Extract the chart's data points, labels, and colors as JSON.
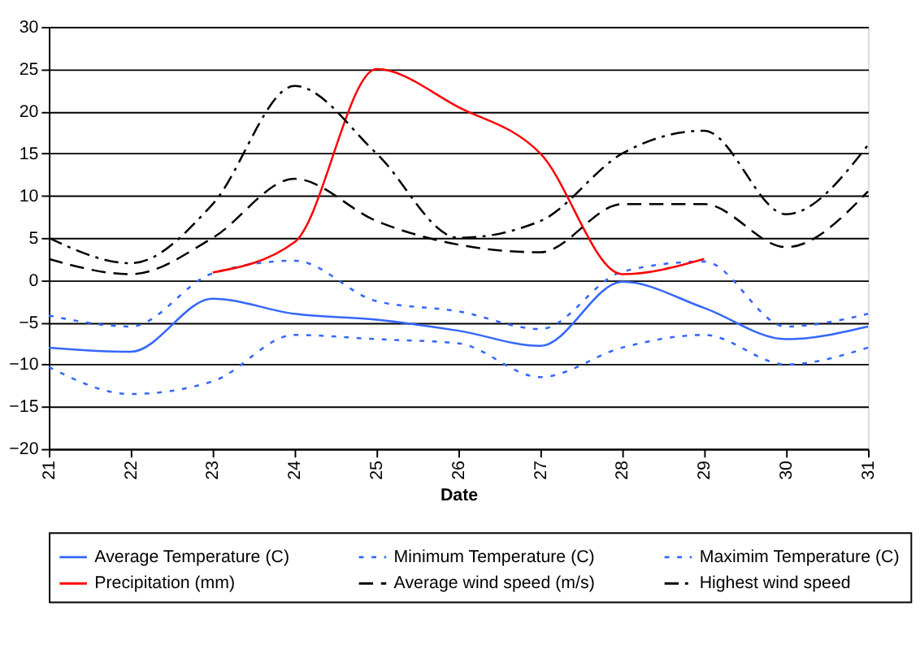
{
  "chart_data": {
    "type": "line",
    "xlabel": "Date",
    "x": [
      21,
      22,
      23,
      24,
      25,
      26,
      27,
      28,
      29,
      30,
      31
    ],
    "xlim": [
      21,
      31
    ],
    "xticks": [
      21,
      22,
      23,
      24,
      25,
      26,
      27,
      28,
      29,
      30,
      31
    ],
    "ylim": [
      -20,
      30
    ],
    "yticks": [
      -20,
      -15,
      -10,
      -5,
      0,
      5,
      10,
      15,
      20,
      25,
      30
    ],
    "grid": "y",
    "legend": "bottom",
    "series": [
      {
        "name": "Average Temperature (C)",
        "color": "#3366ff",
        "line_style": "solid",
        "values": [
          -8,
          -8.5,
          -2.2,
          -4,
          -4.7,
          -6,
          -7.8,
          -0.2,
          -3.3,
          -7,
          -5.5
        ]
      },
      {
        "name": "Minimum Temperature (C)",
        "color": "#3366ff",
        "line_style": "dotted",
        "values": [
          -10.3,
          -13.5,
          -12,
          -6.5,
          -7,
          -7.5,
          -11.5,
          -8,
          -6.5,
          -10,
          -8
        ]
      },
      {
        "name": "Maximim Temperature (C)",
        "color": "#3366ff",
        "line_style": "dotted",
        "values": [
          -4.2,
          -5.5,
          0.8,
          2.3,
          -2.5,
          -3.7,
          -5.8,
          1,
          2.2,
          -5.5,
          -4
        ]
      },
      {
        "name": "Precipitation (mm)",
        "color": "#ff0000",
        "line_style": "solid",
        "values": [
          null,
          null,
          0.9,
          4.5,
          25,
          20.5,
          15,
          0.7,
          2.5,
          null,
          null
        ]
      },
      {
        "name": "Average wind speed (m/s)",
        "color": "#000000",
        "line_style": "dashed",
        "values": [
          2.5,
          0.7,
          5,
          12,
          7,
          4.2,
          3.3,
          9,
          9,
          3.9,
          10.5
        ]
      },
      {
        "name": "Highest wind speed",
        "color": "#000000",
        "line_style": "dashdot",
        "values": [
          5,
          2,
          9,
          23,
          15,
          5,
          7,
          15,
          17.7,
          7.8,
          16
        ]
      }
    ]
  }
}
